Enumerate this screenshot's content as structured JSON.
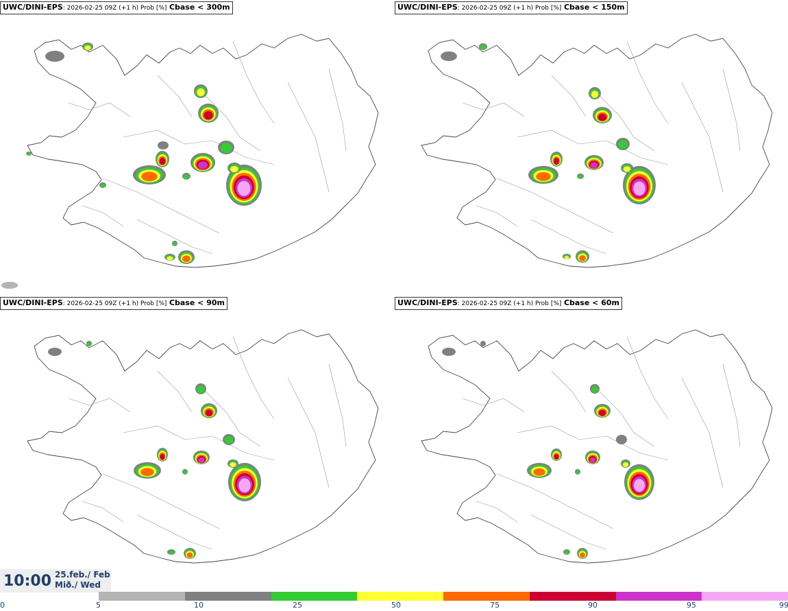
{
  "panels": [
    {
      "model": "UWC/DINI-EPS",
      "meta": ": 2026-02-25 09Z (+1 h) Prob [%]",
      "variable": "Cbase < 300m"
    },
    {
      "model": "UWC/DINI-EPS",
      "meta": ": 2026-02-25 09Z (+1 h) Prob [%]",
      "variable": "Cbase < 150m"
    },
    {
      "model": "UWC/DINI-EPS",
      "meta": ": 2026-02-25 09Z (+1 h) Prob [%]",
      "variable": "Cbase < 90m"
    },
    {
      "model": "UWC/DINI-EPS",
      "meta": ": 2026-02-25 09Z (+1 h) Prob [%]",
      "variable": "Cbase < 60m"
    }
  ],
  "time": {
    "clock": "10:00",
    "date_line": "25.feb./ Feb",
    "day_line": "Mið./ Wed"
  },
  "colorbar": {
    "ticks": [
      "0",
      "5",
      "10",
      "25",
      "50",
      "75",
      "90",
      "95",
      "99"
    ],
    "colors": [
      "#b4b4b4",
      "#808080",
      "#33cc33",
      "#ffff33",
      "#ff6a00",
      "#cc0033",
      "#cc33cc",
      "#f3a8f3"
    ]
  },
  "colors": {
    "label": "#1d3f6a"
  }
}
